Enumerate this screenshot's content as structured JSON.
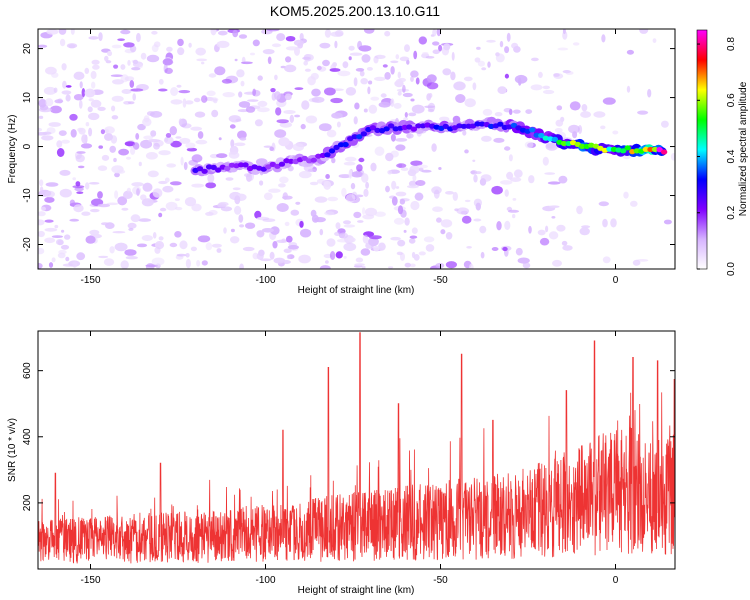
{
  "title": "KOM5.2025.200.13.10.G11",
  "chart_data": [
    {
      "type": "heatmap",
      "xlabel": "Height of straight line (km)",
      "ylabel": "Frequency (Hz)",
      "xlim": [
        -165,
        17
      ],
      "ylim": [
        -25,
        24
      ],
      "xticks": [
        -150,
        -100,
        -50,
        0
      ],
      "yticks": [
        -20,
        -10,
        0,
        10,
        20
      ],
      "colorbar": {
        "label": "Normalized spectral amplitude",
        "range": [
          0.0,
          0.85
        ],
        "ticks": [
          "0.0",
          "0.2",
          "0.4",
          "0.6",
          "0.8"
        ],
        "colors": [
          "#ffffff",
          "#d6b3ff",
          "#8000ff",
          "#0000ff",
          "#00ffff",
          "#00ff00",
          "#ffff00",
          "#ff0000",
          "#ff00ff"
        ]
      },
      "ridge": {
        "x": [
          -120,
          -110,
          -100,
          -92,
          -85,
          -80,
          -75,
          -70,
          -60,
          -50,
          -42,
          -35,
          -28,
          -22,
          -15,
          -10,
          -5,
          0,
          5,
          10,
          14
        ],
        "y": [
          -5,
          -4,
          -4.5,
          -3,
          -2.5,
          -0.5,
          1.5,
          3.5,
          4,
          4,
          4.2,
          4.6,
          4,
          2.5,
          0.8,
          0.3,
          -0.5,
          -0.5,
          -0.8,
          -1,
          -1
        ],
        "amplitude": [
          0.25,
          0.2,
          0.22,
          0.2,
          0.22,
          0.28,
          0.3,
          0.3,
          0.25,
          0.3,
          0.25,
          0.3,
          0.35,
          0.4,
          0.5,
          0.6,
          0.6,
          0.5,
          0.6,
          0.75,
          0.85
        ]
      }
    },
    {
      "type": "line",
      "xlabel": "Height of straight line (km)",
      "ylabel": "SNR (10 * v/v)",
      "xlim": [
        -165,
        17
      ],
      "ylim": [
        0,
        720
      ],
      "xticks": [
        -150,
        -100,
        -50,
        0
      ],
      "yticks": [
        200,
        400,
        600
      ],
      "color": "#ee3333",
      "trend_x": [
        -165,
        -140,
        -120,
        -100,
        -90,
        -80,
        -70,
        -60,
        -50,
        -40,
        -30,
        -20,
        -10,
        0,
        10,
        17
      ],
      "trend_y": [
        100,
        110,
        120,
        130,
        140,
        150,
        160,
        170,
        180,
        190,
        200,
        220,
        250,
        290,
        280,
        270
      ],
      "peaks": [
        {
          "x": -160,
          "y": 290
        },
        {
          "x": -130,
          "y": 320
        },
        {
          "x": -95,
          "y": 420
        },
        {
          "x": -82,
          "y": 610
        },
        {
          "x": -73,
          "y": 715
        },
        {
          "x": -62,
          "y": 500
        },
        {
          "x": -44,
          "y": 650
        },
        {
          "x": -35,
          "y": 450
        },
        {
          "x": -14,
          "y": 540
        },
        {
          "x": -6,
          "y": 690
        },
        {
          "x": 5,
          "y": 640
        },
        {
          "x": 12,
          "y": 630
        }
      ]
    }
  ]
}
